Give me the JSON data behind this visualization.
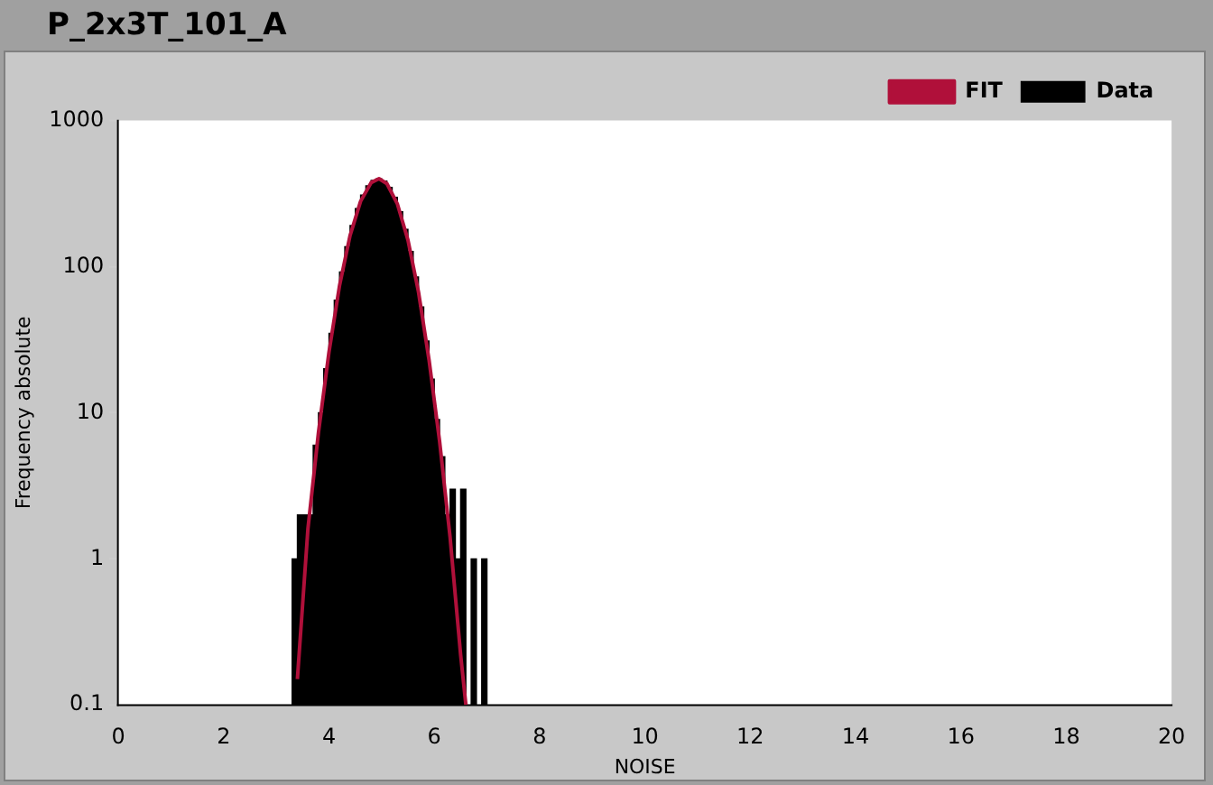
{
  "chart_data": {
    "type": "histogram",
    "title": "P_2x3T_101_A",
    "xlabel": "NOISE",
    "ylabel": "Frequency absolute",
    "log": "y",
    "grid": false,
    "legend": "top right",
    "xlim": [
      0,
      20
    ],
    "xticks": [
      0,
      2,
      4,
      6,
      8,
      10,
      12,
      14,
      16,
      18,
      20
    ],
    "ylim": [
      0.1,
      1000
    ],
    "yticks": [
      0.1,
      1,
      10,
      100,
      1000
    ],
    "series": [
      {
        "name": "Data",
        "color": "#000000",
        "bins": [
          3.3,
          3.4,
          3.5,
          3.6,
          3.7,
          3.8,
          3.9,
          4.0,
          4.1,
          4.2,
          4.3,
          4.4,
          4.5,
          4.6,
          4.7,
          4.8,
          4.9,
          5.0,
          5.1,
          5.2,
          5.3,
          5.4,
          5.5,
          5.6,
          5.7,
          5.8,
          5.9,
          6.0,
          6.1,
          6.2,
          6.3,
          6.4,
          6.5,
          6.6,
          6.7,
          6.8,
          6.9,
          7.0
        ],
        "values": [
          1,
          2,
          2,
          2,
          6,
          10,
          20,
          35,
          59,
          92,
          137,
          191,
          250,
          309,
          358,
          390,
          400,
          385,
          349,
          298,
          238,
          180,
          127,
          85,
          53,
          31,
          17,
          9,
          5,
          2,
          3,
          1,
          3,
          null,
          1,
          null,
          1
        ]
      },
      {
        "name": "FIT",
        "type": "line",
        "color": "#b0103a",
        "x": [
          3.4,
          3.6,
          3.8,
          4.0,
          4.2,
          4.4,
          4.6,
          4.8,
          4.95,
          5.1,
          5.3,
          5.5,
          5.7,
          5.9,
          6.1,
          6.3,
          6.5,
          6.6
        ],
        "values": [
          0.15,
          1.6,
          7.3,
          26,
          74,
          163,
          280,
          376,
          400,
          370,
          268,
          152,
          67,
          23,
          6.4,
          1.4,
          0.22,
          0.1
        ]
      }
    ]
  }
}
